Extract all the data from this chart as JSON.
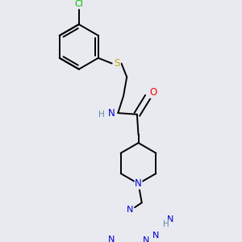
{
  "bg_color": "#e8eaf0",
  "atom_colors": {
    "C": "#000000",
    "N": "#0000cc",
    "O": "#ff0000",
    "S": "#ccaa00",
    "Cl": "#00bb00",
    "H": "#5588aa"
  },
  "bond_color": "#000000",
  "bond_width": 1.4
}
